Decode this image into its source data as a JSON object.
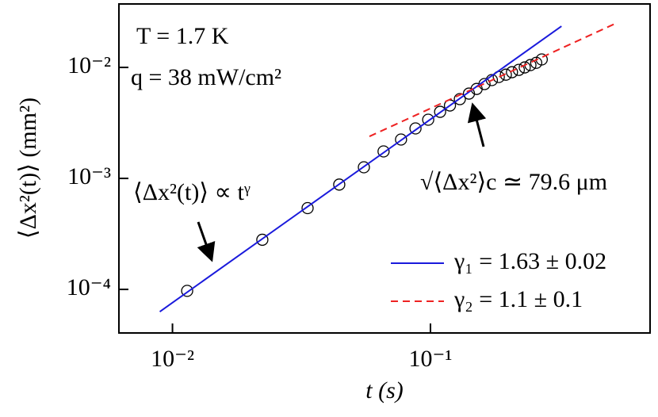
{
  "chart_data": {
    "type": "scatter",
    "xlabel": "t (s)",
    "ylabel": "⟨Δx²(t)⟩ (mm²)",
    "xscale": "log",
    "yscale": "log",
    "xlim": [
      0.0062,
      0.71
    ],
    "ylim": [
      4.05e-05,
      0.0373
    ],
    "xticks": [
      {
        "value": 0.01,
        "label": "10⁻²"
      },
      {
        "value": 0.1,
        "label": "10⁻¹"
      }
    ],
    "yticks": [
      {
        "value": 0.0001,
        "label": "10⁻⁴"
      },
      {
        "value": 0.001,
        "label": "10⁻³"
      },
      {
        "value": 0.01,
        "label": "10⁻²"
      }
    ],
    "legend": "lower right",
    "annotations": [
      "T = 1.7 K",
      "q = 38 mW/cm²",
      "⟨Δx²(t)⟩ ∝ tᵞ",
      "√⟨Δx²⟩c ≃ 79.6 μm"
    ],
    "series": [
      {
        "style": "marker",
        "color": "#000000",
        "x": [
          0.0114,
          0.0223,
          0.0334,
          0.0443,
          0.0552,
          0.0658,
          0.0769,
          0.0875,
          0.098,
          0.109,
          0.119,
          0.13,
          0.141,
          0.151,
          0.162,
          0.173,
          0.184,
          0.196,
          0.207,
          0.22,
          0.232,
          0.244,
          0.257,
          0.27
        ],
        "values": [
          9.7e-05,
          0.00028,
          0.00054,
          0.00088,
          0.00126,
          0.00175,
          0.00224,
          0.00282,
          0.00338,
          0.00398,
          0.00454,
          0.00518,
          0.00581,
          0.0064,
          0.00708,
          0.00769,
          0.0082,
          0.0086,
          0.00906,
          0.0095,
          0.01,
          0.0105,
          0.011,
          0.0118
        ]
      },
      {
        "style": "line",
        "name": "γ₁ = 1.63 ± 0.02",
        "color": "#1a1adc",
        "x": [
          0.00893,
          0.322
        ],
        "values": [
          6.3e-05,
          0.0235
        ]
      },
      {
        "style": "dash",
        "name": "γ₂ = 1.1 ± 0.1",
        "color": "#ee2222",
        "x": [
          0.058,
          0.518
        ],
        "values": [
          0.00239,
          0.0247
        ]
      }
    ]
  }
}
